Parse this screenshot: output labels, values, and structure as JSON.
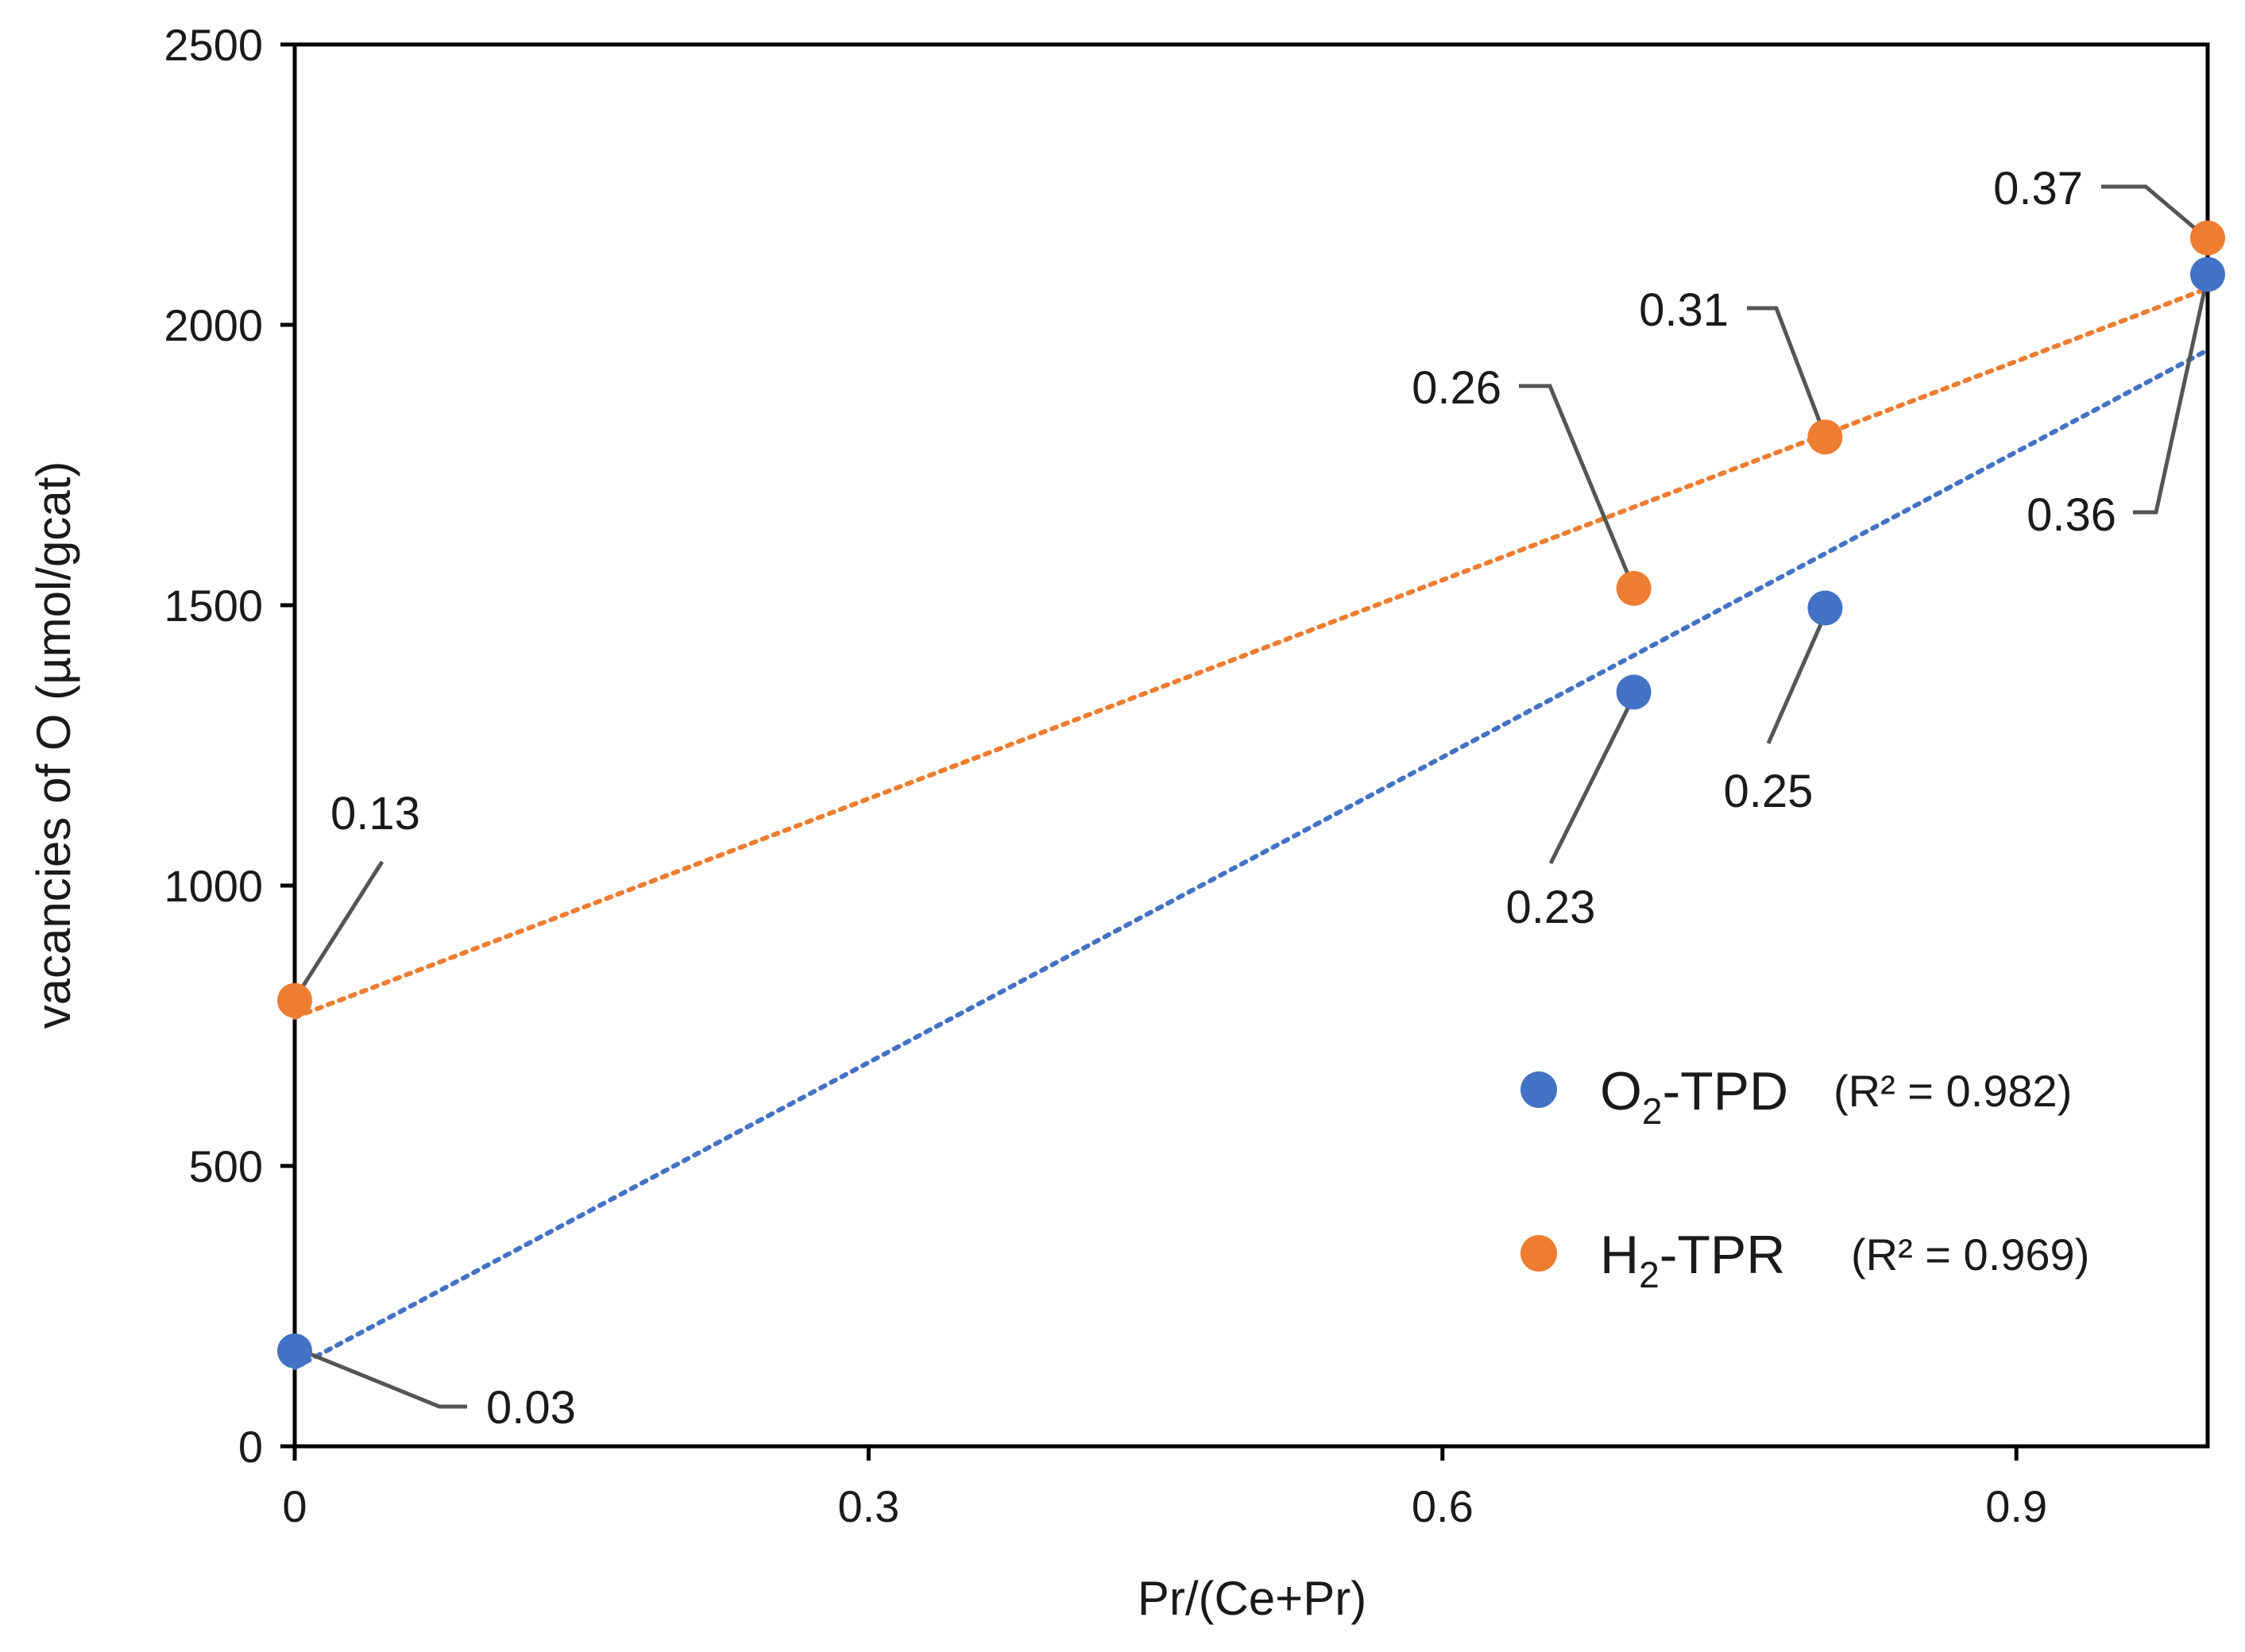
{
  "chart_data": {
    "type": "scatter",
    "xlabel": "Pr/(Ce+Pr)",
    "ylabel": "vacancies of O (µmol/gcat)",
    "xlim": [
      0,
      1.0
    ],
    "ylim": [
      0,
      2500
    ],
    "x_ticks": [
      "0",
      "0.3",
      "0.6",
      "0.9"
    ],
    "x_tick_values": [
      0,
      0.3,
      0.6,
      0.9
    ],
    "y_ticks": [
      "0",
      "500",
      "1000",
      "1500",
      "2000",
      "2500"
    ],
    "y_tick_values": [
      0,
      500,
      1000,
      1500,
      2000,
      2500
    ],
    "grid": false,
    "legend_position": "bottom-right",
    "series": [
      {
        "name": "O2-TPD",
        "legend_main": "O",
        "legend_sub": "2",
        "legend_suffix": "-TPD",
        "r2_text": "(R² = 0.982)",
        "color": "#4472C4",
        "x": [
          0,
          0.7,
          0.8,
          1.0
        ],
        "y": [
          170,
          1345,
          1495,
          2090
        ],
        "labels": [
          "0.03",
          "0.23",
          "0.25",
          "0.36"
        ],
        "trendline": {
          "x": [
            0,
            1.0
          ],
          "y": [
            140,
            1955
          ]
        }
      },
      {
        "name": "H2-TPR",
        "legend_main": "H",
        "legend_sub": "2",
        "legend_suffix": "-TPR",
        "r2_text": "(R² = 0.969)",
        "color": "#ED7D31",
        "x": [
          0,
          0.7,
          0.8,
          1.0
        ],
        "y": [
          795,
          1530,
          1800,
          2155
        ],
        "labels": [
          "0.13",
          "0.26",
          "0.31",
          "0.37"
        ],
        "trendline": {
          "x": [
            0,
            1.0
          ],
          "y": [
            765,
            2065
          ]
        }
      }
    ]
  }
}
